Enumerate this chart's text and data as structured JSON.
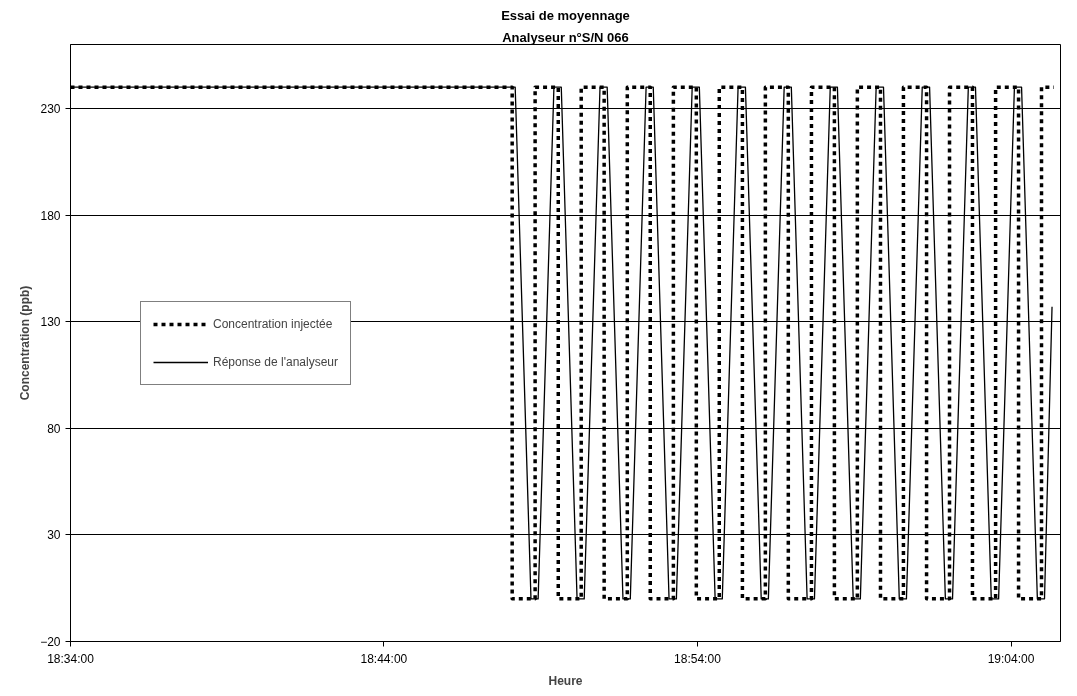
{
  "chart_data": {
    "type": "line",
    "title": "Essai de moyennage",
    "subtitle": "Analyseur n°S/N 066",
    "xlabel": "Heure",
    "ylabel": "Concentration (ppb)",
    "xlim": [
      18.5667,
      19.093
    ],
    "ylim": [
      -20,
      260
    ],
    "xticks": [
      {
        "value": 18.5667,
        "label": "18:34:00"
      },
      {
        "value": 18.7333,
        "label": "18:44:00"
      },
      {
        "value": 18.9,
        "label": "18:54:00"
      },
      {
        "value": 19.0667,
        "label": "19:04:00"
      }
    ],
    "yticks": [
      -20,
      30,
      80,
      130,
      180,
      230
    ],
    "grid": "y",
    "legend": "left",
    "series": [
      {
        "name": "Concentration injectée",
        "type": "step",
        "line_style": "dashed",
        "color": "#000000",
        "x": [
          18.5667,
          18.8015,
          18.8137,
          18.826,
          18.8382,
          18.8504,
          18.8627,
          18.8749,
          18.8872,
          18.8994,
          18.9116,
          18.9239,
          18.9361,
          18.9483,
          18.9606,
          18.9728,
          18.985,
          18.9973,
          19.0095,
          19.0218,
          19.034,
          19.0462,
          19.0585,
          19.0707,
          19.0829,
          19.0895
        ],
        "values": [
          240,
          0,
          240,
          0,
          240,
          0,
          240,
          0,
          240,
          0,
          240,
          0,
          240,
          0,
          240,
          0,
          240,
          0,
          240,
          0,
          240,
          0,
          240,
          0,
          240,
          240
        ]
      },
      {
        "name": "Réponse de l'analyseur",
        "line_style": "solid",
        "color": "#000000",
        "x": [
          18.5667,
          18.8031,
          18.8115,
          18.8153,
          18.8237,
          18.8276,
          18.836,
          18.8398,
          18.8482,
          18.852,
          18.8604,
          18.8643,
          18.8727,
          18.8765,
          18.8849,
          18.8888,
          18.8972,
          18.901,
          18.9094,
          18.9132,
          18.9216,
          18.9255,
          18.9339,
          18.9377,
          18.9461,
          18.9499,
          18.9583,
          18.9622,
          18.9706,
          18.9744,
          18.9828,
          18.9866,
          18.995,
          18.9989,
          19.0073,
          19.0111,
          19.0195,
          19.0234,
          19.0318,
          19.0356,
          19.044,
          19.0478,
          19.0562,
          19.0601,
          19.0685,
          19.0723,
          19.0807,
          19.0845,
          19.0885
        ],
        "values": [
          240,
          240,
          0,
          0,
          240,
          240,
          0,
          0,
          240,
          240,
          0,
          0,
          240,
          240,
          0,
          0,
          240,
          240,
          0,
          0,
          240,
          240,
          0,
          0,
          240,
          240,
          0,
          0,
          240,
          240,
          0,
          0,
          240,
          240,
          0,
          0,
          240,
          240,
          0,
          0,
          240,
          240,
          0,
          0,
          240,
          240,
          0,
          0,
          137
        ]
      }
    ]
  }
}
